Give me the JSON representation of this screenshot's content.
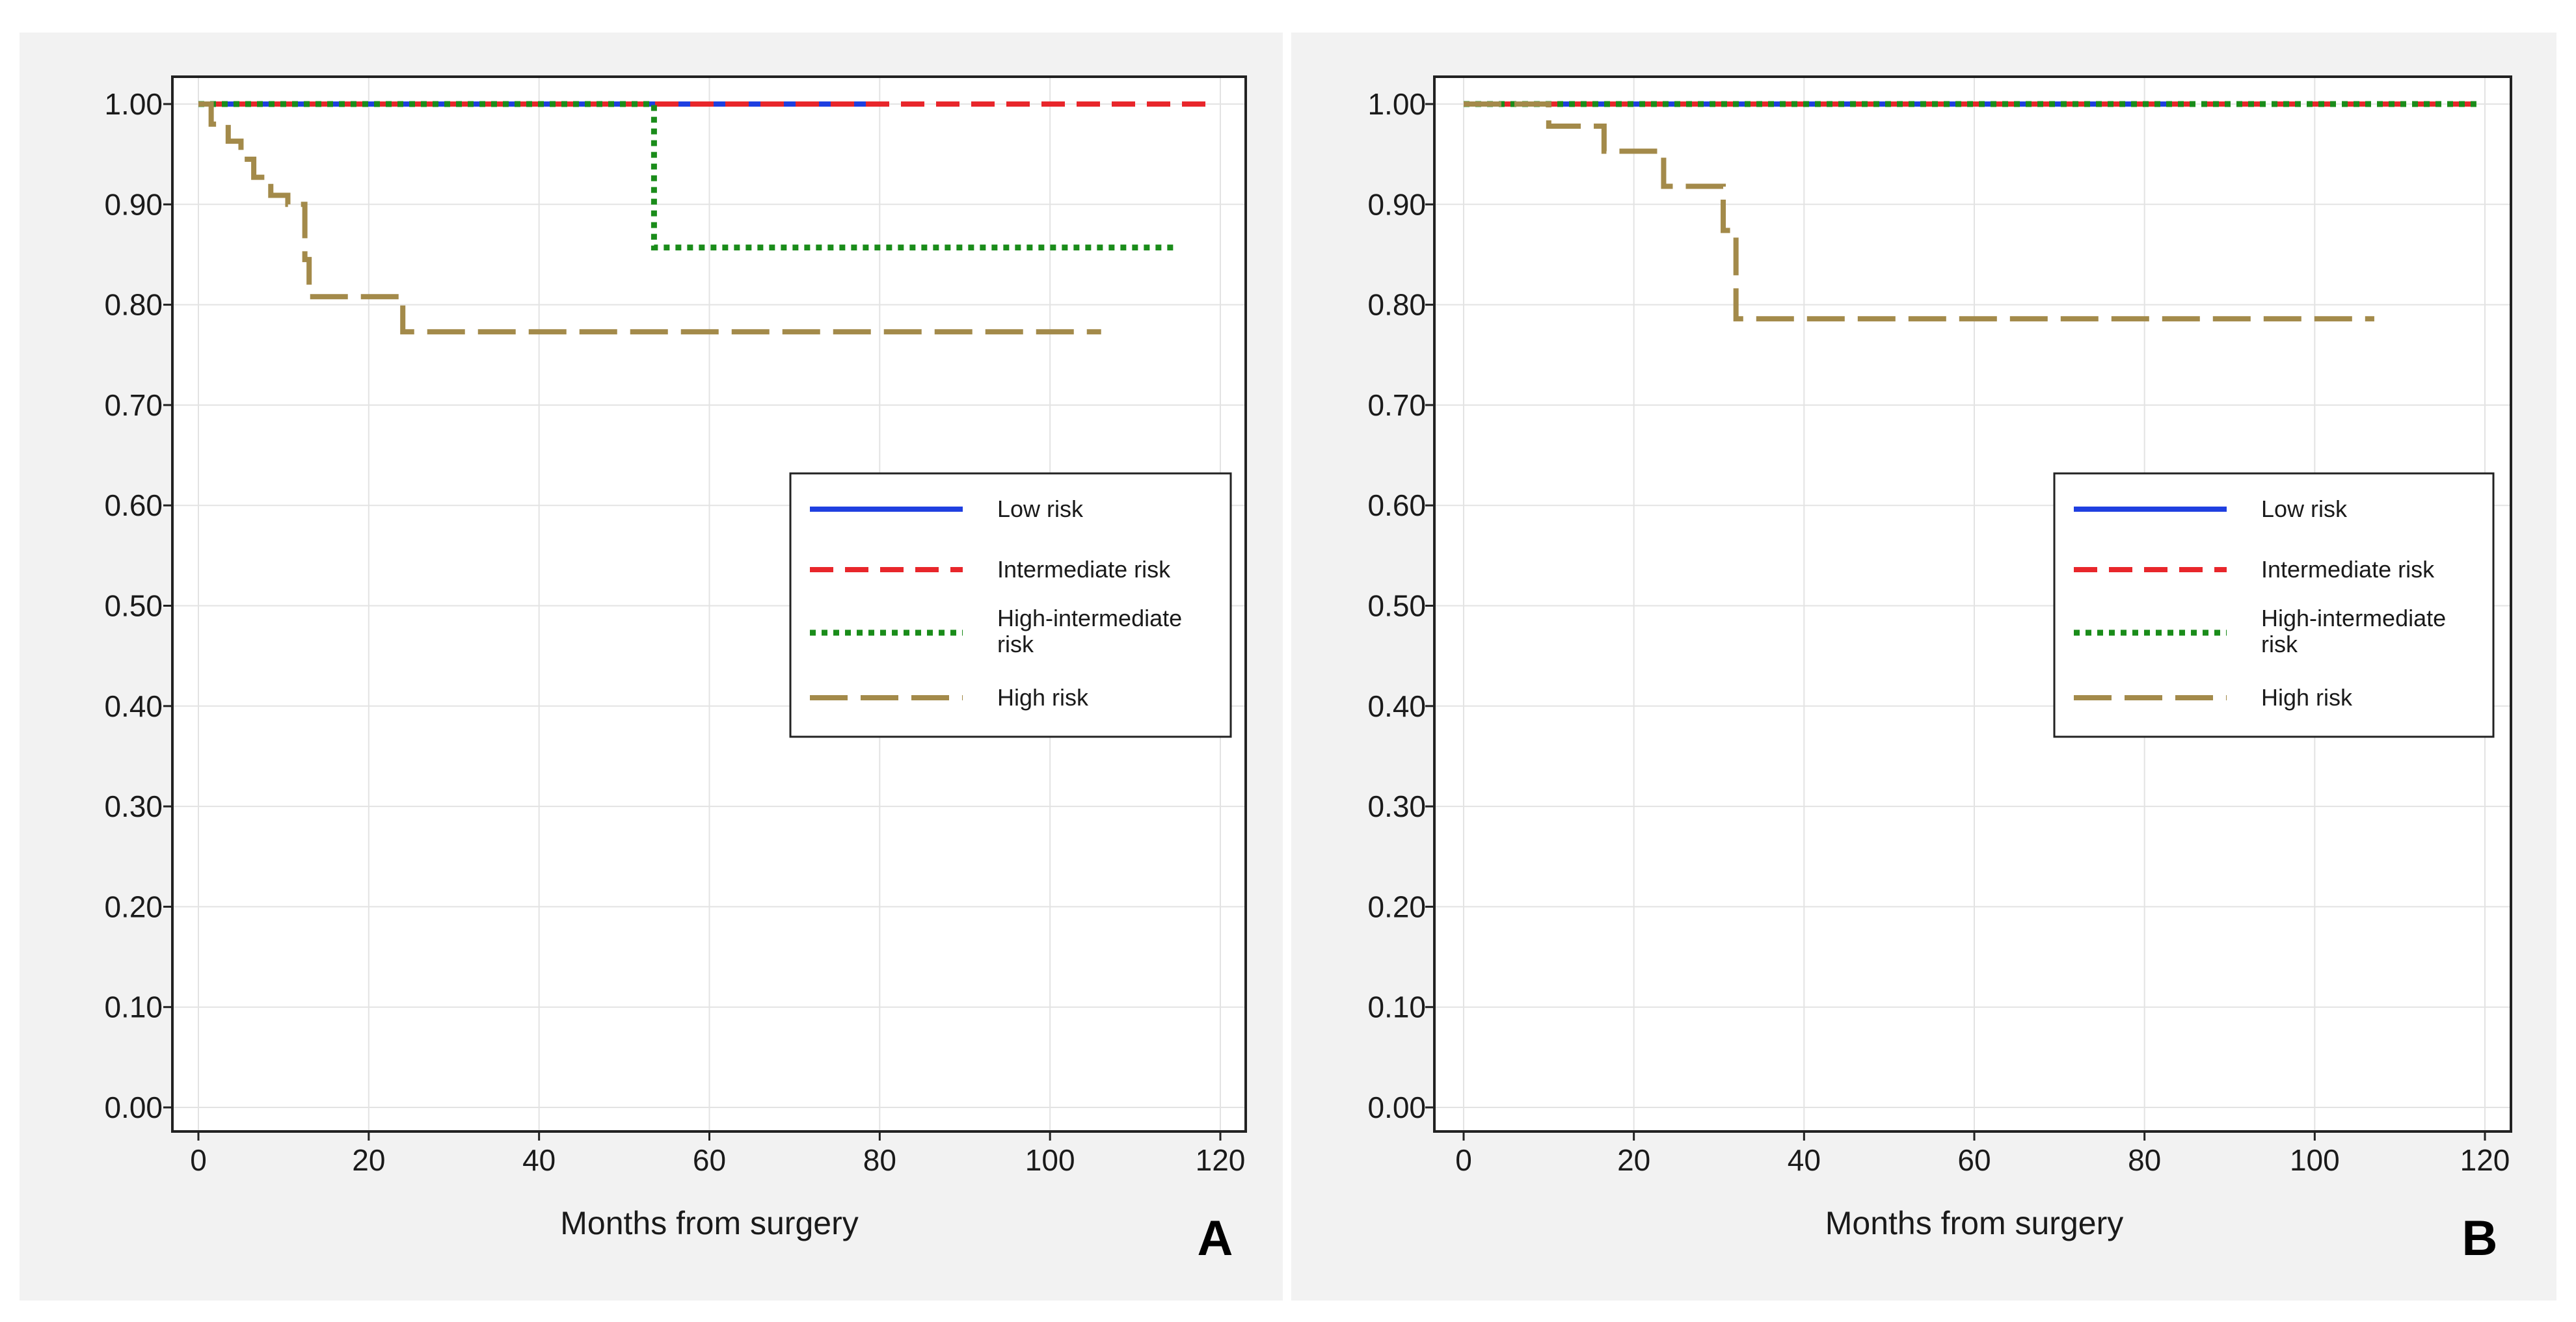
{
  "chart_data": [
    {
      "panel_label": "A",
      "type": "line",
      "step": true,
      "xlabel": "Months from surgery",
      "ylabel": "",
      "xlim": [
        0,
        120
      ],
      "ylim": [
        0,
        1
      ],
      "xticks": [
        "0",
        "20",
        "40",
        "60",
        "80",
        "100",
        "120"
      ],
      "yticks": [
        "0.00",
        "0.10",
        "0.20",
        "0.30",
        "0.40",
        "0.50",
        "0.60",
        "0.70",
        "0.80",
        "0.90",
        "1.00"
      ],
      "grid": true,
      "legend_position": "right",
      "series": [
        {
          "name": "Low risk",
          "label_lines": [
            "Low risk"
          ],
          "color": "#1f3fe0",
          "style": "solid",
          "x": [
            0,
            81
          ],
          "y": [
            1.0,
            1.0
          ]
        },
        {
          "name": "Intermediate risk",
          "label_lines": [
            "Intermediate risk"
          ],
          "color": "#e8262b",
          "style": "dashed",
          "x": [
            0,
            119
          ],
          "y": [
            1.0,
            1.0
          ]
        },
        {
          "name": "High-intermediate risk",
          "label_lines": [
            "High-intermediate",
            "risk"
          ],
          "color": "#1a8c1a",
          "style": "dotted",
          "x": [
            0,
            53.5,
            115
          ],
          "y": [
            1.0,
            0.857,
            0.857
          ]
        },
        {
          "name": "High risk",
          "label_lines": [
            "High risk"
          ],
          "color": "#a38a4a",
          "style": "longdash",
          "x": [
            0,
            1.5,
            3.5,
            5,
            6.5,
            8.5,
            10.5,
            12.5,
            13,
            24,
            106
          ],
          "y": [
            1.0,
            0.98,
            0.963,
            0.945,
            0.927,
            0.909,
            0.9,
            0.845,
            0.808,
            0.773,
            0.773
          ]
        }
      ]
    },
    {
      "panel_label": "B",
      "type": "line",
      "step": true,
      "xlabel": "Months from surgery",
      "ylabel": "",
      "xlim": [
        0,
        120
      ],
      "ylim": [
        0,
        1
      ],
      "xticks": [
        "0",
        "20",
        "40",
        "60",
        "80",
        "100",
        "120"
      ],
      "yticks": [
        "0.00",
        "0.10",
        "0.20",
        "0.30",
        "0.40",
        "0.50",
        "0.60",
        "0.70",
        "0.80",
        "0.90",
        "1.00"
      ],
      "grid": true,
      "legend_position": "right",
      "series": [
        {
          "name": "Low risk",
          "label_lines": [
            "Low risk"
          ],
          "color": "#1f3fe0",
          "style": "solid",
          "x": [
            0,
            83
          ],
          "y": [
            1.0,
            1.0
          ]
        },
        {
          "name": "Intermediate risk",
          "label_lines": [
            "Intermediate risk"
          ],
          "color": "#e8262b",
          "style": "dashed",
          "x": [
            0,
            119
          ],
          "y": [
            1.0,
            1.0
          ]
        },
        {
          "name": "High-intermediate risk",
          "label_lines": [
            "High-intermediate",
            "risk"
          ],
          "color": "#1a8c1a",
          "style": "dotted",
          "x": [
            0,
            119
          ],
          "y": [
            1.0,
            1.0
          ]
        },
        {
          "name": "High risk",
          "label_lines": [
            "High risk"
          ],
          "color": "#a38a4a",
          "style": "longdash",
          "x": [
            0,
            10,
            16.5,
            23.5,
            30.5,
            32,
            107
          ],
          "y": [
            1.0,
            0.978,
            0.953,
            0.918,
            0.874,
            0.786,
            0.786
          ]
        }
      ]
    }
  ]
}
